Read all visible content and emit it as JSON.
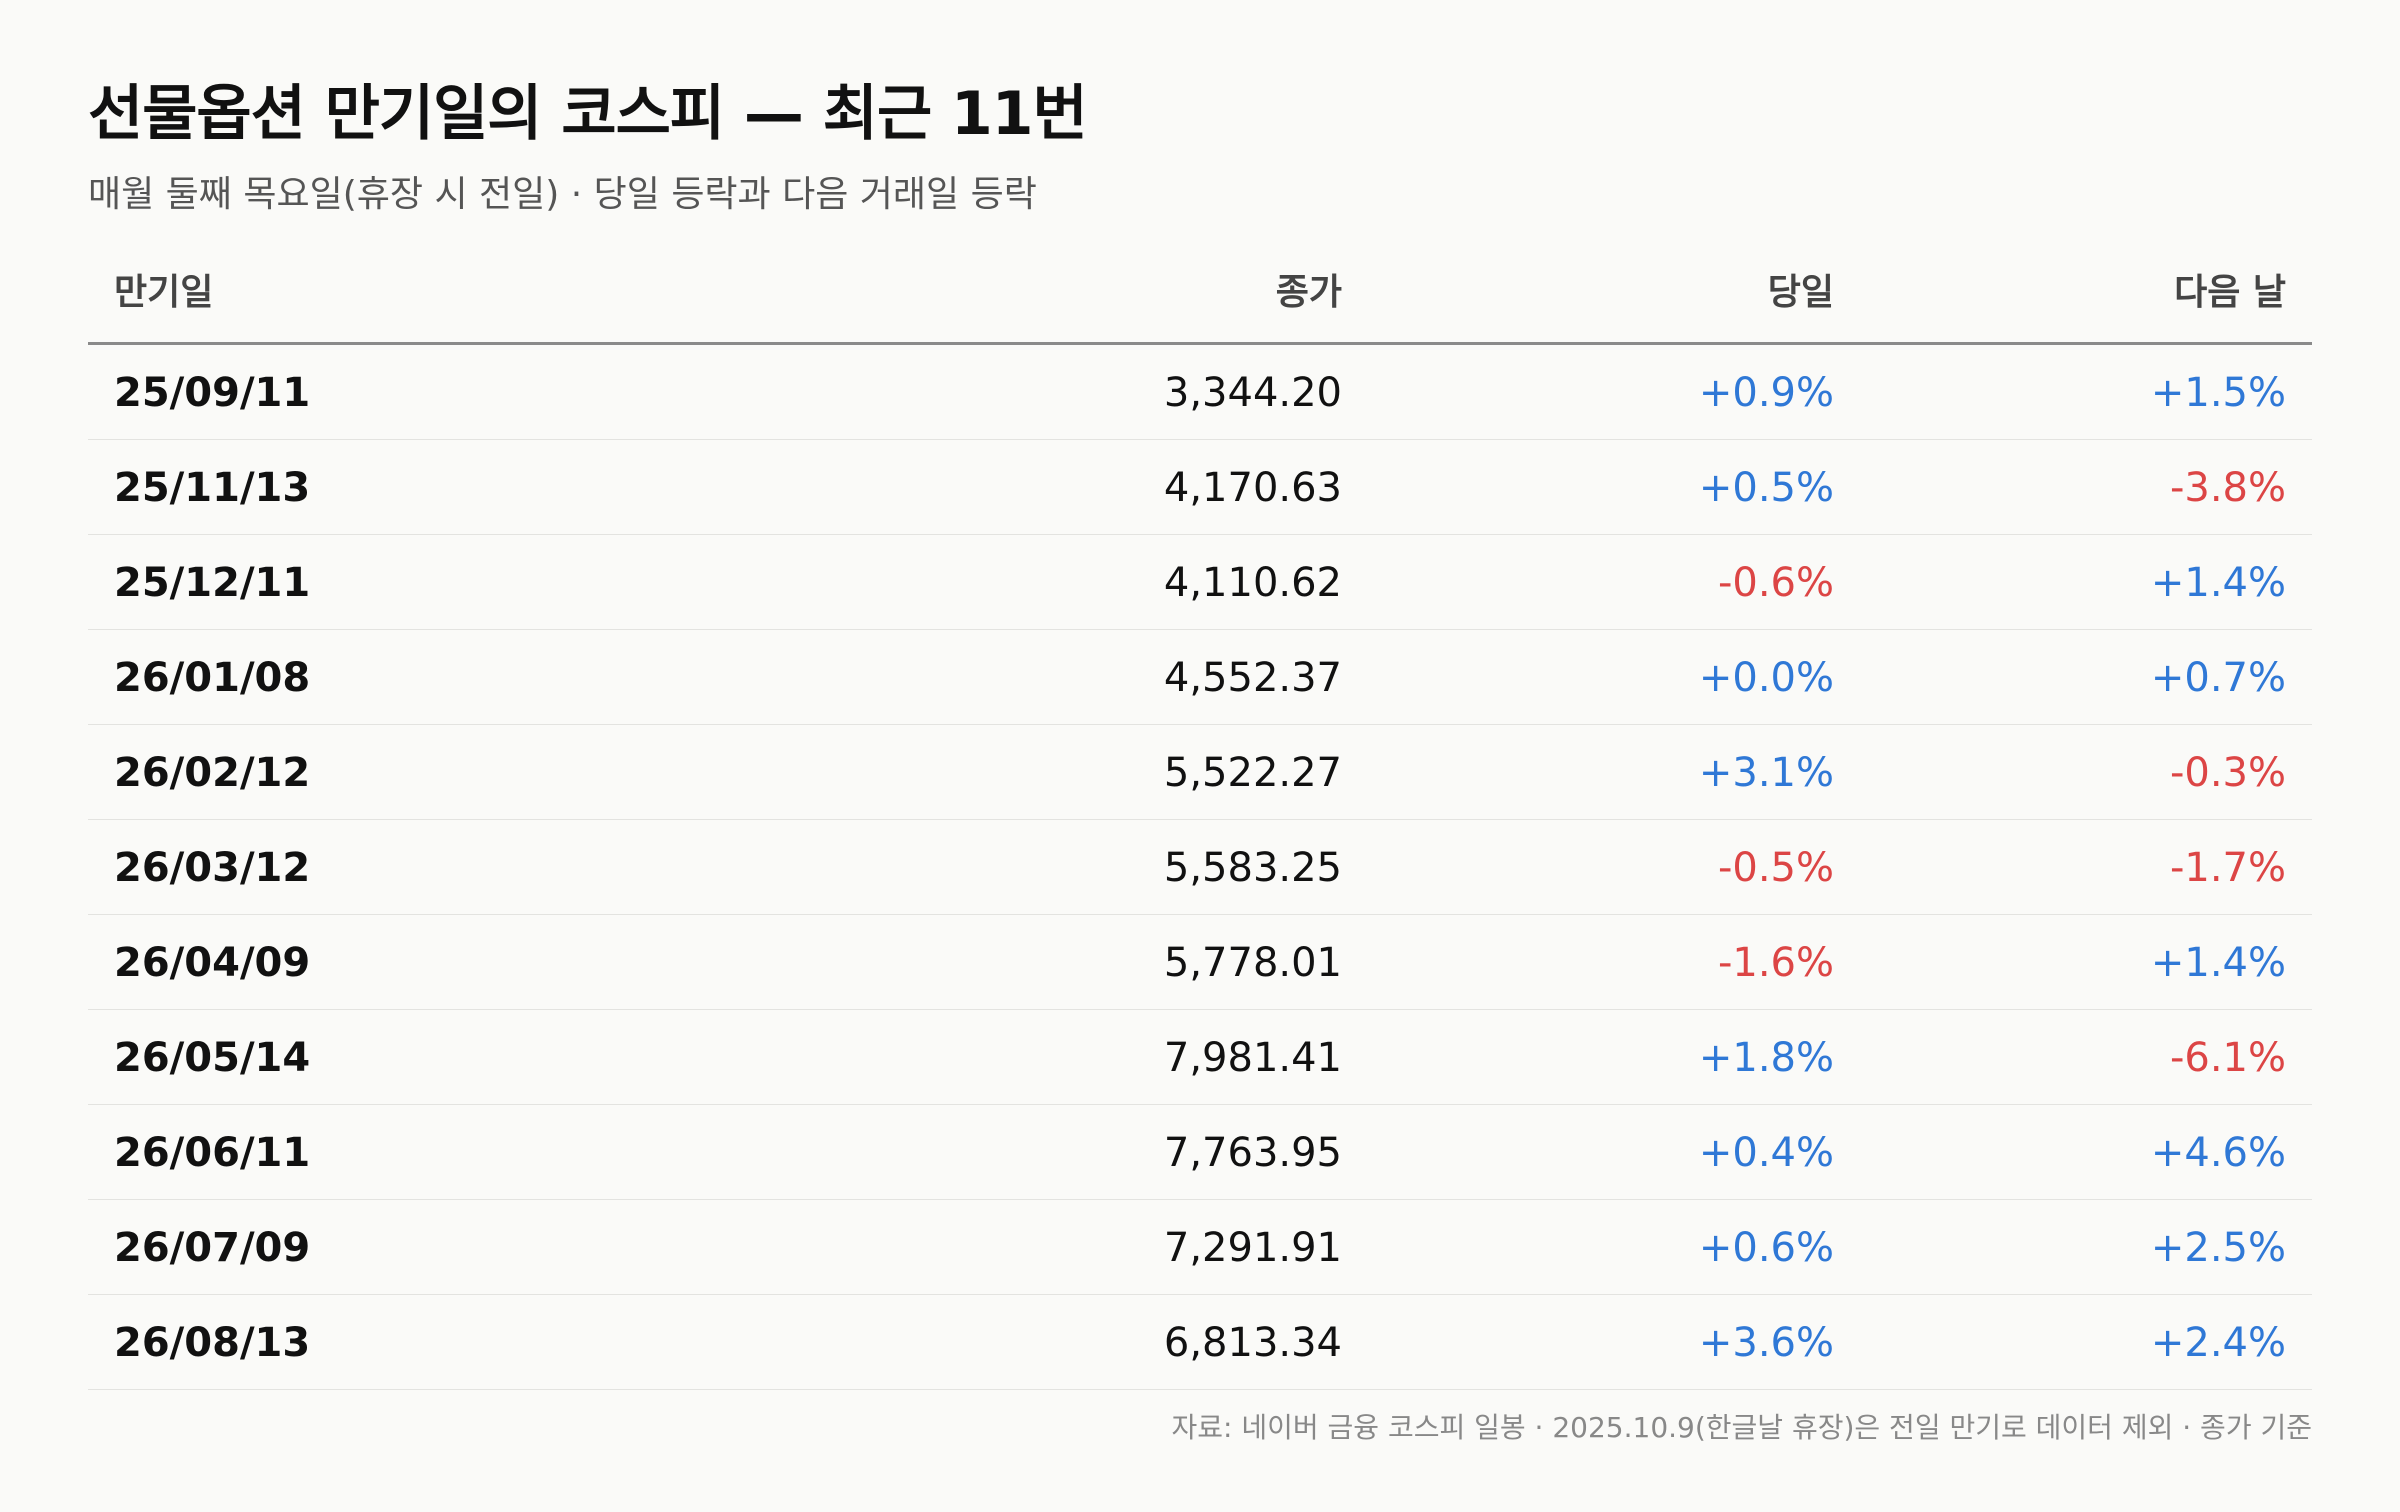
{
  "title": "선물옵션 만기일의 코스피 — 최근 11번",
  "subtitle": "매월 둘째 목요일(휴장 시 전일) · 당일 등락과 다음 거래일 등락",
  "columns": [
    "만기일",
    "종가",
    "당일",
    "다음 날"
  ],
  "rows": [
    {
      "date": "25/09/11",
      "close": "3,344.20",
      "day": "+0.9%",
      "next": "+1.5%"
    },
    {
      "date": "25/11/13",
      "close": "4,170.63",
      "day": "+0.5%",
      "next": "-3.8%"
    },
    {
      "date": "25/12/11",
      "close": "4,110.62",
      "day": "-0.6%",
      "next": "+1.4%"
    },
    {
      "date": "26/01/08",
      "close": "4,552.37",
      "day": "+0.0%",
      "next": "+0.7%"
    },
    {
      "date": "26/02/12",
      "close": "5,522.27",
      "day": "+3.1%",
      "next": "-0.3%"
    },
    {
      "date": "26/03/12",
      "close": "5,583.25",
      "day": "-0.5%",
      "next": "-1.7%"
    },
    {
      "date": "26/04/09",
      "close": "5,778.01",
      "day": "-1.6%",
      "next": "+1.4%"
    },
    {
      "date": "26/05/14",
      "close": "7,981.41",
      "day": "+1.8%",
      "next": "-6.1%"
    },
    {
      "date": "26/06/11",
      "close": "7,763.95",
      "day": "+0.4%",
      "next": "+4.6%"
    },
    {
      "date": "26/07/09",
      "close": "7,291.91",
      "day": "+0.6%",
      "next": "+2.5%"
    },
    {
      "date": "26/08/13",
      "close": "6,813.34",
      "day": "+3.6%",
      "next": "+2.4%"
    }
  ],
  "footnote": "자료: 네이버 금융 코스피 일봉 · 2025.10.9(한글날 휴장)은 전일 만기로 데이터 제외 · 종가 기준",
  "colors": {
    "positive": "#2f78d6",
    "negative": "#dc4545",
    "background": "#fafaf8",
    "text": "#111111"
  }
}
